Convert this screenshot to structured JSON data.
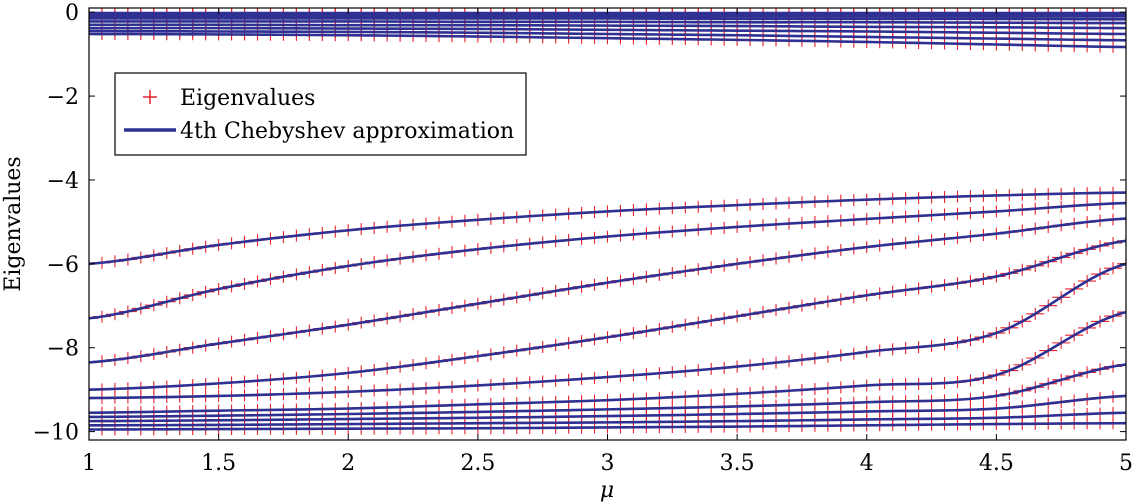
{
  "chart_data": {
    "type": "line",
    "title": "",
    "xlabel": "μ",
    "ylabel": "Eigenvalues",
    "xlim": [
      1,
      5
    ],
    "ylim": [
      -10.2,
      0.1
    ],
    "xticks": [
      1,
      1.5,
      2,
      2.5,
      3,
      3.5,
      4,
      4.5,
      5
    ],
    "xtick_labels": [
      "1",
      "1.5",
      "2",
      "2.5",
      "3",
      "3.5",
      "4",
      "4.5",
      "5"
    ],
    "yticks": [
      0,
      -2,
      -4,
      -6,
      -8,
      -10
    ],
    "ytick_labels": [
      "0",
      "−2",
      "−4",
      "−6",
      "−8",
      "−10"
    ],
    "grid": false,
    "legend_position": "upper-left",
    "legend": [
      {
        "label": "Eigenvalues",
        "marker": "+",
        "color": "#e8212a"
      },
      {
        "label": "4th Chebyshev approximation",
        "line": true,
        "color": "#2e3192"
      }
    ],
    "colors": {
      "marker": "#e8212a",
      "line": "#2e3192"
    },
    "x": [
      1,
      1.5,
      2,
      2.5,
      3,
      3.5,
      4,
      4.5,
      5
    ],
    "series": [
      {
        "values": [
          -0.02,
          -0.02,
          -0.02,
          -0.02,
          -0.02,
          -0.02,
          -0.02,
          -0.02,
          -0.02
        ]
      },
      {
        "values": [
          -0.05,
          -0.05,
          -0.05,
          -0.05,
          -0.05,
          -0.05,
          -0.05,
          -0.05,
          -0.05
        ]
      },
      {
        "values": [
          -0.1,
          -0.1,
          -0.1,
          -0.1,
          -0.1,
          -0.1,
          -0.1,
          -0.1,
          -0.1
        ]
      },
      {
        "values": [
          -0.15,
          -0.15,
          -0.15,
          -0.15,
          -0.15,
          -0.16,
          -0.16,
          -0.16,
          -0.17
        ]
      },
      {
        "values": [
          -0.22,
          -0.22,
          -0.22,
          -0.23,
          -0.23,
          -0.24,
          -0.24,
          -0.25,
          -0.26
        ]
      },
      {
        "values": [
          -0.3,
          -0.3,
          -0.31,
          -0.31,
          -0.32,
          -0.33,
          -0.35,
          -0.36,
          -0.38
        ]
      },
      {
        "values": [
          -0.38,
          -0.38,
          -0.39,
          -0.4,
          -0.42,
          -0.44,
          -0.46,
          -0.49,
          -0.52
        ]
      },
      {
        "values": [
          -0.45,
          -0.46,
          -0.47,
          -0.49,
          -0.52,
          -0.55,
          -0.59,
          -0.63,
          -0.67
        ]
      },
      {
        "values": [
          -0.52,
          -0.53,
          -0.55,
          -0.58,
          -0.62,
          -0.66,
          -0.71,
          -0.77,
          -0.83
        ]
      },
      {
        "values": [
          -6.0,
          -5.55,
          -5.2,
          -4.95,
          -4.75,
          -4.6,
          -4.47,
          -4.37,
          -4.3
        ]
      },
      {
        "values": [
          -7.3,
          -6.6,
          -6.05,
          -5.65,
          -5.35,
          -5.12,
          -4.93,
          -4.75,
          -4.55
        ]
      },
      {
        "values": [
          -8.35,
          -7.9,
          -7.45,
          -6.95,
          -6.45,
          -6.0,
          -5.6,
          -5.28,
          -4.92
        ]
      },
      {
        "values": [
          -9.0,
          -8.85,
          -8.6,
          -8.2,
          -7.75,
          -7.25,
          -6.75,
          -6.3,
          -5.45
        ]
      },
      {
        "values": [
          -9.2,
          -9.15,
          -9.05,
          -8.9,
          -8.7,
          -8.45,
          -8.1,
          -7.65,
          -6.0
        ]
      },
      {
        "values": [
          -9.55,
          -9.5,
          -9.45,
          -9.35,
          -9.25,
          -9.1,
          -8.9,
          -8.65,
          -7.15
        ]
      },
      {
        "values": [
          -9.65,
          -9.62,
          -9.58,
          -9.53,
          -9.47,
          -9.4,
          -9.3,
          -9.15,
          -8.4
        ]
      },
      {
        "values": [
          -9.75,
          -9.73,
          -9.7,
          -9.67,
          -9.63,
          -9.58,
          -9.52,
          -9.45,
          -9.15
        ]
      },
      {
        "values": [
          -9.85,
          -9.84,
          -9.82,
          -9.8,
          -9.78,
          -9.75,
          -9.71,
          -9.67,
          -9.55
        ]
      },
      {
        "values": [
          -9.95,
          -9.94,
          -9.93,
          -9.92,
          -9.9,
          -9.88,
          -9.85,
          -9.82,
          -9.8
        ]
      }
    ]
  }
}
